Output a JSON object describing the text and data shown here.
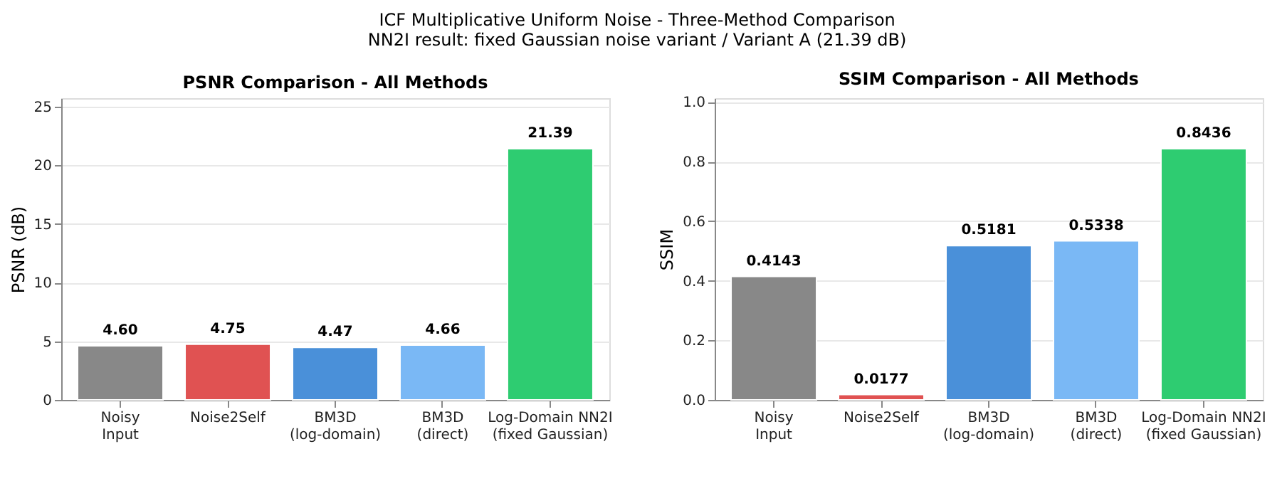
{
  "chart_data": [
    {
      "type": "bar",
      "title": "PSNR Comparison - All Methods",
      "ylabel": "PSNR (dB)",
      "annotations": [
        "ICF Multiplicative Uniform Noise - Three-Method Comparison",
        "NN2I result: fixed Gaussian noise variant / Variant A (21.39 dB)"
      ],
      "categories": [
        "Noisy\nInput",
        "Noise2Self",
        "BM3D\n(log-domain)",
        "BM3D\n(direct)",
        "Log-Domain NN2I\n(fixed Gaussian)"
      ],
      "values": [
        4.6,
        4.75,
        4.47,
        4.66,
        21.39
      ],
      "value_labels": [
        "4.60",
        "4.75",
        "4.47",
        "4.66",
        "21.39"
      ],
      "colors": [
        "#888888",
        "#e05252",
        "#4a90d9",
        "#7ab8f5",
        "#2ecc71"
      ],
      "ylim": [
        0,
        25.7
      ],
      "yticks": [
        0,
        5,
        10,
        15,
        20,
        25
      ],
      "grid": "y"
    },
    {
      "type": "bar",
      "title": "SSIM Comparison - All Methods",
      "ylabel": "SSIM",
      "categories": [
        "Noisy\nInput",
        "Noise2Self",
        "BM3D\n(log-domain)",
        "BM3D\n(direct)",
        "Log-Domain NN2I\n(fixed Gaussian)"
      ],
      "values": [
        0.4143,
        0.0177,
        0.5181,
        0.5338,
        0.8436
      ],
      "data_labels": true,
      "colors": [
        "#888888",
        "#e05252",
        "#4a90d9",
        "#7ab8f5",
        "#2ecc71"
      ],
      "ylim": [
        0,
        1.013
      ],
      "yticks": [
        {
          "value": 0,
          "label": "0.0"
        },
        {
          "value": 0.2,
          "label": "0.2"
        },
        {
          "value": 0.4,
          "label": "0.4"
        },
        {
          "value": 0.6,
          "label": "0.6"
        },
        {
          "value": 0.8,
          "label": "0.8"
        },
        {
          "value": 1,
          "label": "1.0"
        }
      ],
      "grid": "y"
    }
  ]
}
